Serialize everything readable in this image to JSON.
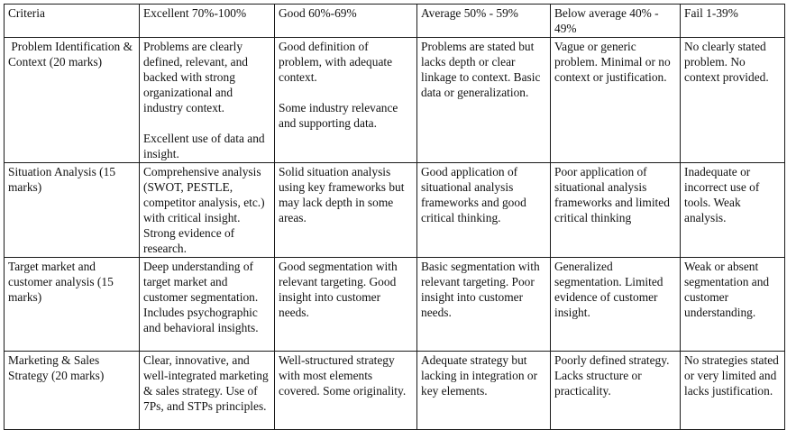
{
  "headers": [
    "Criteria",
    "Excellent 70%-100%",
    "Good 60%-69%",
    "Average 50% - 59%",
    "Below average 40% - 49%",
    "Fail 1-39%"
  ],
  "rows": [
    {
      "criteria": " Problem Identification & Context (20 marks)",
      "excellent": [
        "Problems are clearly defined, relevant, and backed with strong organizational and industry context.",
        "Excellent use of data and insight."
      ],
      "good": [
        "Good definition of problem, with adequate context.",
        "Some industry relevance and supporting data."
      ],
      "average": "Problems are stated but lacks depth or clear linkage to context. Basic data or generalization.",
      "below": "Vague or generic problem. Minimal or no context or justification.",
      "fail": "No clearly stated problem. No context provided."
    },
    {
      "criteria": "Situation Analysis (15 marks)",
      "excellent": [
        "Comprehensive analysis (SWOT, PESTLE, competitor analysis, etc.) with critical insight. Strong evidence of research."
      ],
      "good": [
        "Solid situation analysis using key frameworks but may lack depth in some areas."
      ],
      "average": "Good application of situational analysis frameworks and good critical thinking.",
      "below": "Poor application of situational analysis frameworks and limited critical thinking",
      "fail": "Inadequate or incorrect use of tools. Weak analysis."
    },
    {
      "criteria": "Target market and customer analysis (15 marks)",
      "excellent": [
        "Deep understanding of target market and customer segmentation. Includes psychographic and behavioral insights."
      ],
      "good": [
        "Good segmentation with relevant targeting. Good insight into customer needs."
      ],
      "average": "Basic segmentation with relevant targeting. Poor insight into customer needs.",
      "below": "Generalized segmentation. Limited evidence of customer insight.",
      "fail": "Weak or absent segmentation and customer understanding."
    },
    {
      "criteria": "Marketing & Sales Strategy (20 marks)",
      "excellent": [
        "Clear, innovative, and well-integrated marketing & sales strategy. Use of 7Ps, and STPs principles."
      ],
      "good": [
        "Well-structured strategy with most elements covered. Some originality."
      ],
      "average": "Adequate strategy but lacking in integration or key elements.",
      "below": "Poorly defined strategy. Lacks structure or practicality.",
      "fail": "No strategies stated or very limited and lacks justification."
    }
  ]
}
